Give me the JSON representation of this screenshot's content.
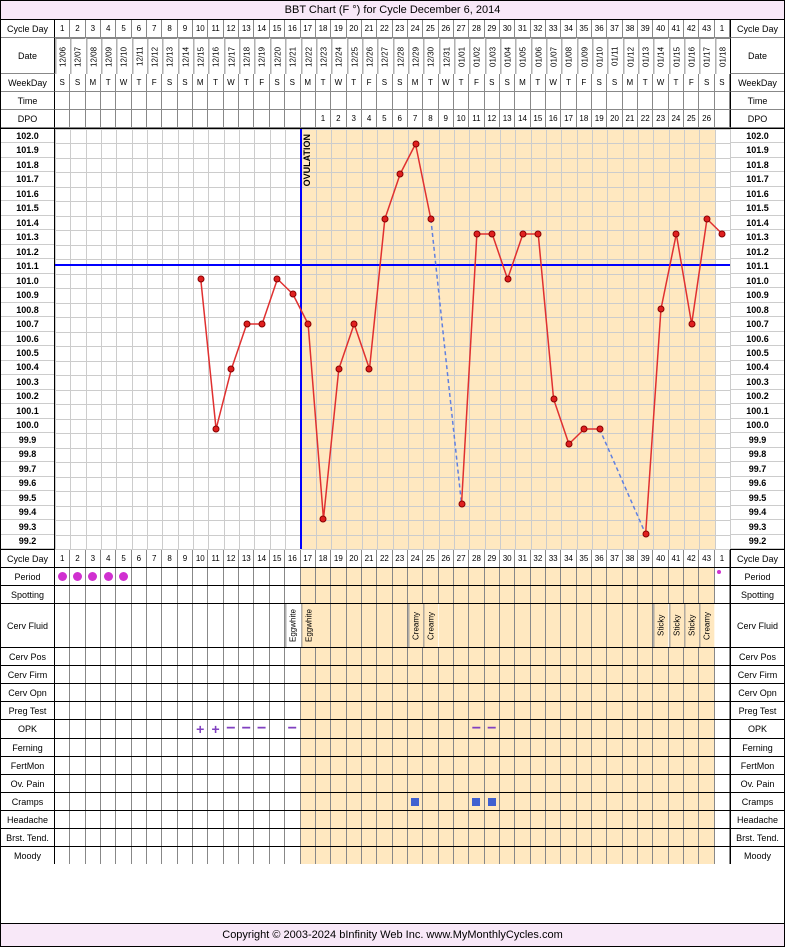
{
  "title": "BBT Chart (F °) for Cycle December 6, 2014",
  "footer": "Copyright © 2003-2024 bInfinity Web Inc.    www.MyMonthlyCycles.com",
  "num_days": 44,
  "header_labels": [
    "Cycle Day",
    "Date",
    "WeekDay",
    "Time",
    "DPO"
  ],
  "cycle_days": [
    1,
    2,
    3,
    4,
    5,
    6,
    7,
    8,
    9,
    10,
    11,
    12,
    13,
    14,
    15,
    16,
    17,
    18,
    19,
    20,
    21,
    22,
    23,
    24,
    25,
    26,
    27,
    28,
    29,
    30,
    31,
    32,
    33,
    34,
    35,
    36,
    37,
    38,
    39,
    40,
    41,
    42,
    43,
    1
  ],
  "dates": [
    "12/06",
    "12/07",
    "12/08",
    "12/09",
    "12/10",
    "12/11",
    "12/12",
    "12/13",
    "12/14",
    "12/15",
    "12/16",
    "12/17",
    "12/18",
    "12/19",
    "12/20",
    "12/21",
    "12/22",
    "12/23",
    "12/24",
    "12/25",
    "12/26",
    "12/27",
    "12/28",
    "12/29",
    "12/30",
    "12/31",
    "01/01",
    "01/02",
    "01/03",
    "01/04",
    "01/05",
    "01/06",
    "01/07",
    "01/08",
    "01/09",
    "01/10",
    "01/11",
    "01/12",
    "01/13",
    "01/14",
    "01/15",
    "01/16",
    "01/17",
    "01/18"
  ],
  "weekdays": [
    "S",
    "S",
    "M",
    "T",
    "W",
    "T",
    "F",
    "S",
    "S",
    "M",
    "T",
    "W",
    "T",
    "F",
    "S",
    "S",
    "M",
    "T",
    "W",
    "T",
    "F",
    "S",
    "S",
    "M",
    "T",
    "W",
    "T",
    "F",
    "S",
    "S",
    "M",
    "T",
    "W",
    "T",
    "F",
    "S",
    "S",
    "M",
    "T",
    "W",
    "T",
    "F",
    "S",
    "S"
  ],
  "dpo": [
    "",
    "",
    "",
    "",
    "",
    "",
    "",
    "",
    "",
    "",
    "",
    "",
    "",
    "",
    "",
    "",
    "",
    "1",
    "2",
    "3",
    "4",
    "5",
    "6",
    "7",
    "8",
    "9",
    "10",
    "11",
    "12",
    "13",
    "14",
    "15",
    "16",
    "17",
    "18",
    "19",
    "20",
    "21",
    "22",
    "23",
    "24",
    "25",
    "26",
    ""
  ],
  "ovulation_day": 17,
  "luteal_start_day": 17,
  "luteal_end_day": 43,
  "coverline_temp": 101.1,
  "y_min": 99.2,
  "y_max": 102.0,
  "y_step": 0.1,
  "temps": {
    "10": 101.0,
    "11": 100.0,
    "12": 100.4,
    "13": 100.7,
    "14": 100.7,
    "15": 101.0,
    "16": 100.9,
    "17": 100.7,
    "18": 99.4,
    "19": 100.4,
    "20": 100.7,
    "21": 100.4,
    "22": 101.4,
    "23": 101.7,
    "24": 101.9,
    "25": 101.4,
    "27": 99.5,
    "28": 101.3,
    "29": 101.3,
    "30": 101.0,
    "31": 101.3,
    "32": 101.3,
    "33": 100.2,
    "34": 99.9,
    "35": 100.0,
    "36": 100.0,
    "39": 99.3,
    "40": 100.8,
    "41": 101.3,
    "42": 100.7,
    "43": 101.4,
    "44": 101.3
  },
  "dashed_segments": [
    [
      25,
      27
    ],
    [
      36,
      39
    ]
  ],
  "bottom_rows": [
    "Cycle Day",
    "Period",
    "Spotting",
    "Cerv Fluid",
    "Cerv Pos",
    "Cerv Firm",
    "Cerv Opn",
    "Preg Test",
    "OPK",
    "Ferning",
    "FertMon",
    "Ov. Pain",
    "Cramps",
    "Headache",
    "Brst. Tend.",
    "Moody"
  ],
  "period_days": [
    1,
    2,
    3,
    4,
    5
  ],
  "period_small_day": 44,
  "cerv_fluid": {
    "16": "Eggwhite",
    "17": "Eggwhite",
    "24": "Creamy",
    "25": "Creamy",
    "40": "Sticky",
    "41": "Sticky",
    "42": "Sticky",
    "43": "Creamy"
  },
  "opk": {
    "10": "+",
    "11": "+",
    "12": "-",
    "13": "-",
    "14": "-",
    "16": "-",
    "28": "-",
    "29": "-"
  },
  "cramps_days": [
    24,
    28,
    29
  ],
  "colors": {
    "luteal_bg": "#ffe8c0",
    "line": "#e03030",
    "point": "#e02020",
    "coverline": "#0000ff",
    "period": "#d030d0",
    "opk": "#8040c0",
    "cramp": "#4060d0"
  }
}
